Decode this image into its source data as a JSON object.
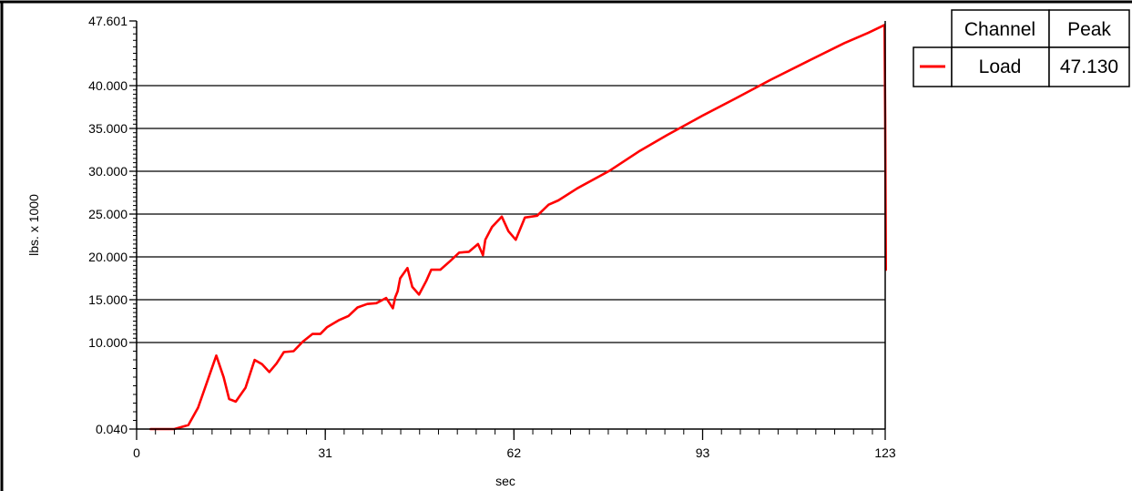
{
  "chart_data": {
    "type": "line",
    "xlabel": "sec",
    "ylabel": "lbs. x 1000",
    "xlim": [
      0,
      123
    ],
    "x_ticks": [
      "0",
      "31",
      "62",
      "93",
      "123"
    ],
    "y_ticks": [
      "0.040",
      "10.000",
      "15.000",
      "20.000",
      "25.000",
      "30.000",
      "35.000",
      "40.000",
      "47.601"
    ],
    "y_tick_values": [
      0.04,
      10.0,
      15.0,
      20.0,
      25.0,
      30.0,
      35.0,
      40.0,
      47.601
    ],
    "grid": true,
    "legend_placement": "top-right",
    "legend": {
      "headers": [
        "Channel",
        "Peak"
      ],
      "rows": [
        {
          "channel": "Load",
          "peak": "47.130",
          "color": "#ff0000"
        }
      ]
    },
    "series": [
      {
        "name": "Load",
        "color": "#ff0000",
        "x": [
          2.3,
          6.2,
          8.5,
          10.1,
          11.6,
          13.1,
          14.3,
          15.2,
          16.3,
          17.9,
          19.4,
          20.6,
          21.8,
          23.0,
          24.2,
          25.8,
          27.3,
          28.9,
          30.2,
          31.3,
          33.2,
          34.8,
          36.3,
          37.9,
          39.4,
          41.0,
          42.1,
          42.5,
          42.9,
          43.3,
          44.5,
          45.3,
          46.4,
          47.6,
          48.4,
          49.9,
          51.5,
          53.0,
          54.6,
          56.1,
          56.9,
          57.3,
          58.4,
          60.0,
          61.1,
          62.3,
          63.8,
          65.8,
          67.7,
          69.3,
          72.4,
          77.8,
          82.5,
          87.1,
          93.0,
          98.4,
          104.2,
          110.1,
          116.3,
          120.2,
          122.9,
          123.0,
          123.1
        ],
        "y": [
          0.04,
          0.04,
          0.5,
          2.5,
          5.5,
          8.5,
          6.0,
          3.5,
          3.2,
          4.8,
          8.0,
          7.5,
          6.6,
          7.6,
          8.9,
          9.0,
          10.1,
          11.0,
          11.0,
          11.8,
          12.6,
          13.1,
          14.1,
          14.5,
          14.6,
          15.2,
          14.0,
          15.3,
          16.0,
          17.5,
          18.7,
          16.5,
          15.6,
          17.2,
          18.5,
          18.5,
          19.5,
          20.5,
          20.6,
          21.5,
          20.2,
          22.0,
          23.5,
          24.7,
          23.0,
          22.0,
          24.6,
          24.8,
          26.1,
          26.6,
          28.0,
          30.1,
          32.3,
          34.2,
          36.5,
          38.5,
          40.7,
          42.8,
          45.0,
          46.2,
          47.13,
          36.0,
          18.5
        ]
      }
    ]
  }
}
